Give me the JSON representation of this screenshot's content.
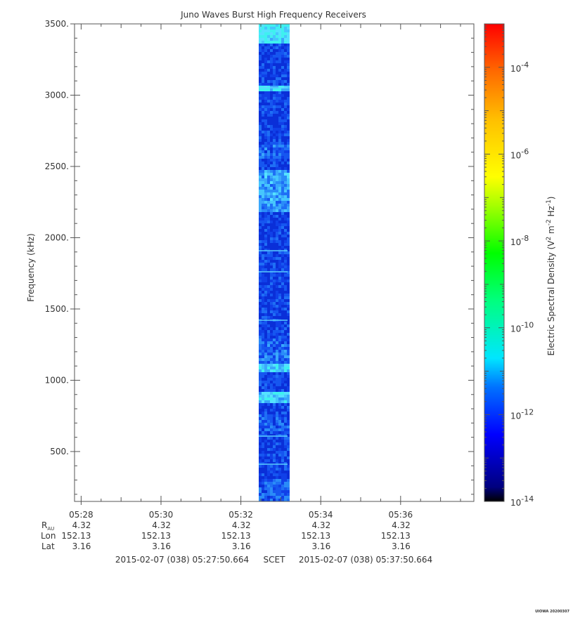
{
  "chart_data": {
    "type": "heatmap",
    "title": "Juno Waves Burst High Frequency Receivers",
    "ylabel": "Frequency (kHz)",
    "y_ticks": [
      "3500.",
      "3000.",
      "2500.",
      "2000.",
      "1500.",
      "1000.",
      "500."
    ],
    "y_tick_values": [
      3500,
      3000,
      2500,
      2000,
      1500,
      1000,
      500
    ],
    "ylim": [
      150,
      3500
    ],
    "x_ticks": [
      "05:28",
      "05:30",
      "05:32",
      "05:34",
      "05:36"
    ],
    "x_tick_minutes": [
      28,
      30,
      32,
      34,
      36
    ],
    "xlim_minutes": [
      27.8344,
      37.8344
    ],
    "data_span_minutes": [
      32.45,
      33.17
    ],
    "colorbar": {
      "label_prefix": "Electric Spectral Density (V",
      "label_mid": " m",
      "label_suffix": " Hz",
      "label_close": ")",
      "sup_2": "2",
      "sup_neg2": "-2",
      "sup_neg1": "-1",
      "scale": "log",
      "range_exponents": [
        -14,
        -3
      ],
      "tick_exponents": [
        -4,
        -6,
        -8,
        -10,
        -12,
        -14
      ],
      "tick_base": "10",
      "tick_labels": [
        "-4",
        "-6",
        "-8",
        "-10",
        "-12",
        "-14"
      ]
    },
    "ephemeris": {
      "labels": {
        "r": "R",
        "r_sub": "AU",
        "lon": "Lon",
        "lat": "Lat"
      },
      "r_au": [
        "4.32",
        "4.32",
        "4.32",
        "4.32",
        "4.32"
      ],
      "lon": [
        "152.13",
        "152.13",
        "152.13",
        "152.13",
        "152.13"
      ],
      "lat": [
        "3.16",
        "3.16",
        "3.16",
        "3.16",
        "3.16"
      ]
    },
    "time_range": {
      "start": "2015-02-07 (038) 05:27:50.664",
      "label": "SCET",
      "end": "2015-02-07 (038) 05:37:50.664"
    },
    "footer": "UIOWA 20200307",
    "colors": {
      "scale": [
        "#00007f",
        "#0000ff",
        "#007fff",
        "#00ffff",
        "#00ff00",
        "#7fff00",
        "#ffff00",
        "#ffbf00",
        "#ff7f00",
        "#ff0000"
      ]
    }
  }
}
